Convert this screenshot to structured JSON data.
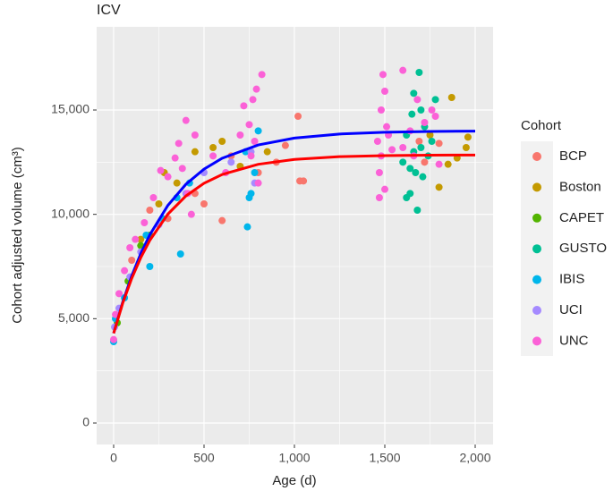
{
  "chart_data": {
    "type": "scatter",
    "title": "ICV",
    "x_label": "Age (d)",
    "y_label": "Cohort adjusted volume (cm³)",
    "legend_title": "Cohort",
    "legend": "right",
    "grid": true,
    "xlim": [
      -94,
      2099
    ],
    "ylim": [
      -1029,
      18986
    ],
    "xticks": [
      0,
      500,
      {
        "value": 1000,
        "label": "1,000"
      },
      {
        "value": 1500,
        "label": "1,500"
      },
      {
        "value": 2000,
        "label": "2,000"
      }
    ],
    "yticks": [
      0,
      {
        "value": 5000,
        "label": "5,000"
      },
      {
        "value": 10000,
        "label": "10,000"
      },
      {
        "value": 15000,
        "label": "15,000"
      }
    ],
    "series": [
      {
        "name": "BCP",
        "color": "#F8766D",
        "x": [
          100,
          200,
          300,
          450,
          600,
          650,
          800,
          950,
          1020,
          1050,
          1030,
          1690,
          1720,
          1800,
          900,
          500
        ],
        "values": [
          7800,
          10200,
          9800,
          11000,
          9700,
          12800,
          12000,
          13300,
          14700,
          11600,
          11600,
          13500,
          12500,
          13400,
          12500,
          10500
        ]
      },
      {
        "name": "Boston",
        "color": "#C49A00",
        "x": [
          150,
          250,
          280,
          350,
          450,
          550,
          600,
          700,
          850,
          1800,
          1870,
          1950,
          1900,
          1850,
          1960,
          1750
        ],
        "values": [
          8800,
          10500,
          12000,
          11500,
          13000,
          13200,
          13500,
          12300,
          13000,
          11300,
          15600,
          13200,
          12700,
          12400,
          13700,
          13800
        ]
      },
      {
        "name": "CAPET",
        "color": "#53B400",
        "x": [
          20,
          80,
          150,
          200
        ],
        "values": [
          4800,
          6800,
          8500,
          9000
        ]
      },
      {
        "name": "GUSTO",
        "color": "#00C094",
        "x": [
          1600,
          1620,
          1640,
          1650,
          1660,
          1670,
          1680,
          1690,
          1700,
          1710,
          1720,
          1740,
          1760,
          1780,
          1620,
          1660,
          1700,
          1640
        ],
        "values": [
          12500,
          13800,
          11000,
          14800,
          15800,
          12000,
          10200,
          16800,
          13200,
          11800,
          14200,
          12800,
          13500,
          15500,
          10800,
          13000,
          15000,
          12200
        ]
      },
      {
        "name": "IBIS",
        "color": "#00B6EB",
        "x": [
          0,
          10,
          60,
          180,
          200,
          270,
          350,
          370,
          420,
          730,
          740,
          760,
          780,
          800,
          750
        ],
        "values": [
          3900,
          5000,
          6000,
          9000,
          7500,
          9800,
          10800,
          8100,
          11500,
          13000,
          9400,
          11000,
          12000,
          14000,
          10800
        ]
      },
      {
        "name": "UCI",
        "color": "#A58AFF",
        "x": [
          5,
          30,
          90,
          150,
          250,
          400,
          500,
          650,
          760,
          780
        ],
        "values": [
          4600,
          5500,
          7000,
          8200,
          9500,
          11000,
          12000,
          12500,
          13000,
          11500
        ]
      },
      {
        "name": "UNC",
        "color": "#FB61D7",
        "x": [
          0,
          10,
          30,
          60,
          90,
          120,
          170,
          220,
          260,
          300,
          340,
          360,
          380,
          400,
          410,
          430,
          450,
          550,
          620,
          700,
          720,
          750,
          770,
          790,
          800,
          820,
          760,
          780,
          1460,
          1470,
          1480,
          1490,
          1500,
          1510,
          1480,
          1520,
          1500,
          1470,
          1600,
          1640,
          1660,
          1680,
          1720,
          1760,
          1800,
          1780,
          1600,
          1540
        ],
        "values": [
          4000,
          5200,
          6200,
          7300,
          8400,
          8800,
          9600,
          10800,
          12100,
          11800,
          12700,
          13400,
          12200,
          14500,
          11000,
          10000,
          13800,
          12800,
          12000,
          13800,
          15200,
          14300,
          15500,
          16000,
          11500,
          16700,
          12800,
          13500,
          13500,
          12000,
          15000,
          16700,
          11200,
          14200,
          12800,
          13800,
          15900,
          10800,
          16900,
          14000,
          12800,
          15500,
          14400,
          15000,
          12400,
          14700,
          13200,
          13100
        ]
      }
    ],
    "fits": [
      {
        "color": "#0000FF",
        "x": [
          0,
          50,
          100,
          150,
          200,
          300,
          400,
          500,
          600,
          800,
          1000,
          1250,
          1500,
          1750,
          2000
        ],
        "values": [
          4300,
          5789,
          7050,
          8117,
          9020,
          10431,
          11443,
          12168,
          12687,
          13326,
          13654,
          13850,
          13935,
          13972,
          13988
        ]
      },
      {
        "color": "#FF0000",
        "x": [
          0,
          50,
          100,
          150,
          200,
          300,
          400,
          500,
          600,
          800,
          1000,
          1250,
          1500,
          1750,
          2000
        ],
        "values": [
          4300,
          5736,
          6930,
          7924,
          8751,
          10012,
          10885,
          11490,
          11909,
          12399,
          12634,
          12764,
          12816,
          12836,
          12843
        ]
      }
    ]
  }
}
